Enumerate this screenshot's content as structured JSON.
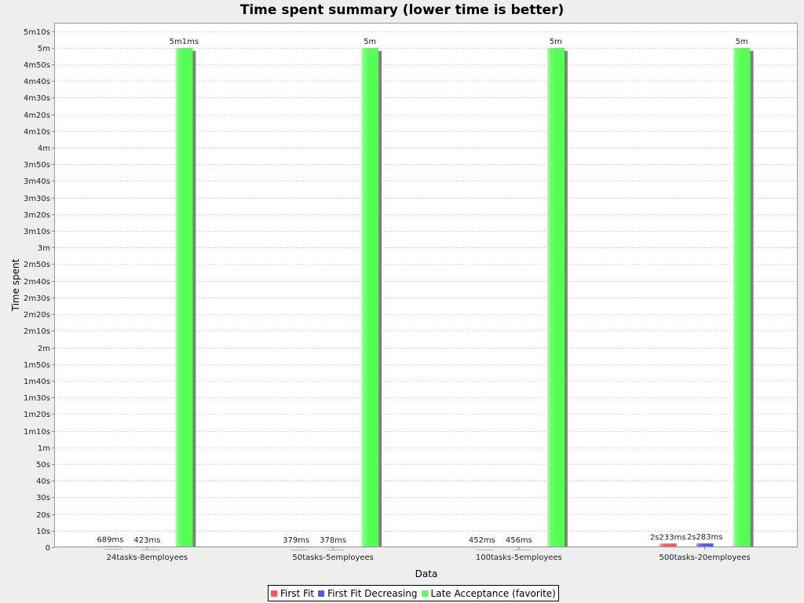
{
  "chart_data": {
    "type": "bar",
    "title": "Time spent summary (lower time is better)",
    "xlabel": "Data",
    "ylabel": "Time spent",
    "categories": [
      "24tasks-8employees",
      "50tasks-5employees",
      "100tasks-5employees",
      "500tasks-20employees"
    ],
    "series": [
      {
        "name": "First Fit",
        "color": "#ff5555",
        "values_ms": [
          689,
          379,
          452,
          2233
        ],
        "labels": [
          "689ms",
          "379ms",
          "452ms",
          "2s233ms"
        ]
      },
      {
        "name": "First Fit Decreasing",
        "color": "#5555ff",
        "values_ms": [
          423,
          378,
          456,
          2283
        ],
        "labels": [
          "423ms",
          "378ms",
          "456ms",
          "2s283ms"
        ]
      },
      {
        "name": "Late Acceptance (favorite)",
        "color": "#55ff55",
        "values_ms": [
          300001,
          300000,
          300000,
          300000
        ],
        "labels": [
          "5m1ms",
          "5m",
          "5m",
          "5m"
        ]
      }
    ],
    "y_ticks_ms": [
      0,
      10000,
      20000,
      30000,
      40000,
      50000,
      60000,
      70000,
      80000,
      90000,
      100000,
      110000,
      120000,
      130000,
      140000,
      150000,
      160000,
      170000,
      180000,
      190000,
      200000,
      210000,
      220000,
      230000,
      240000,
      250000,
      260000,
      270000,
      280000,
      290000,
      300000,
      310000
    ],
    "y_tick_labels": [
      "0",
      "10s",
      "20s",
      "30s",
      "40s",
      "50s",
      "1m",
      "1m10s",
      "1m20s",
      "1m30s",
      "1m40s",
      "1m50s",
      "2m",
      "2m10s",
      "2m20s",
      "2m30s",
      "2m40s",
      "2m50s",
      "3m",
      "3m10s",
      "3m20s",
      "3m30s",
      "3m40s",
      "3m50s",
      "4m",
      "4m10s",
      "4m20s",
      "4m30s",
      "4m40s",
      "4m50s",
      "5m",
      "5m10s"
    ],
    "ylim_ms": [
      0,
      315000
    ],
    "grid": true,
    "legend_position": "bottom"
  }
}
